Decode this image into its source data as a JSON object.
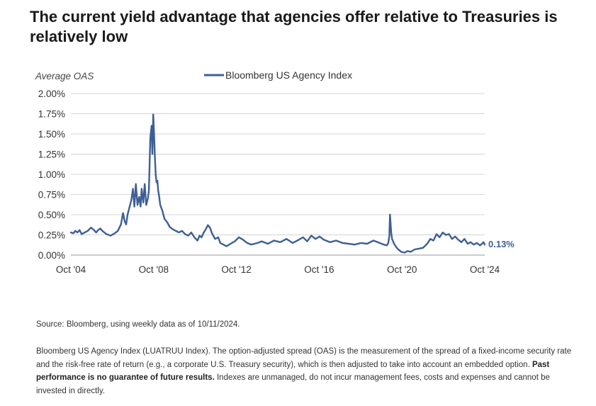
{
  "title": "The current yield advantage that agencies offer relative to Treasuries is relatively low",
  "chart_data": {
    "type": "line",
    "ylabel": "Average OAS",
    "ylim": [
      0,
      2.0
    ],
    "y_ticks": [
      "2.00%",
      "1.75%",
      "1.50%",
      "1.25%",
      "1.00%",
      "0.75%",
      "0.50%",
      "0.25%",
      "0.00%"
    ],
    "y_tick_values": [
      2.0,
      1.75,
      1.5,
      1.25,
      1.0,
      0.75,
      0.5,
      0.25,
      0.0
    ],
    "x_ticks": [
      "Oct '04",
      "Oct '08",
      "Oct '12",
      "Oct '16",
      "Oct '20",
      "Oct '24"
    ],
    "x_tick_values": [
      2004.78,
      2008.78,
      2012.78,
      2016.78,
      2020.78,
      2024.78
    ],
    "grid": true,
    "legend_position": "top",
    "series": [
      {
        "name": "Bloomberg US Agency Index",
        "color": "#3e5f94",
        "end_label": "0.13%",
        "x": [
          2004.78,
          2004.9,
          2005.0,
          2005.1,
          2005.2,
          2005.3,
          2005.45,
          2005.6,
          2005.75,
          2005.9,
          2006.0,
          2006.1,
          2006.2,
          2006.3,
          2006.5,
          2006.7,
          2006.9,
          2007.05,
          2007.2,
          2007.3,
          2007.38,
          2007.45,
          2007.52,
          2007.6,
          2007.7,
          2007.78,
          2007.85,
          2007.92,
          2008.0,
          2008.08,
          2008.15,
          2008.2,
          2008.28,
          2008.35,
          2008.42,
          2008.5,
          2008.55,
          2008.62,
          2008.68,
          2008.72,
          2008.76,
          2008.8,
          2008.84,
          2008.88,
          2008.92,
          2008.96,
          2009.0,
          2009.05,
          2009.1,
          2009.2,
          2009.3,
          2009.45,
          2009.55,
          2009.7,
          2009.85,
          2010.0,
          2010.15,
          2010.3,
          2010.45,
          2010.6,
          2010.75,
          2010.9,
          2011.0,
          2011.1,
          2011.2,
          2011.3,
          2011.4,
          2011.5,
          2011.6,
          2011.75,
          2011.9,
          2012.0,
          2012.15,
          2012.3,
          2012.5,
          2012.7,
          2012.9,
          2013.1,
          2013.3,
          2013.5,
          2013.8,
          2014.0,
          2014.3,
          2014.6,
          2014.9,
          2015.2,
          2015.5,
          2015.8,
          2016.0,
          2016.2,
          2016.4,
          2016.6,
          2016.8,
          2017.0,
          2017.3,
          2017.6,
          2017.9,
          2018.2,
          2018.5,
          2018.8,
          2019.1,
          2019.4,
          2019.7,
          2019.9,
          2020.05,
          2020.12,
          2020.17,
          2020.2,
          2020.23,
          2020.26,
          2020.3,
          2020.4,
          2020.5,
          2020.6,
          2020.75,
          2020.9,
          2021.05,
          2021.2,
          2021.4,
          2021.6,
          2021.8,
          2022.0,
          2022.15,
          2022.3,
          2022.45,
          2022.6,
          2022.75,
          2022.9,
          2023.05,
          2023.2,
          2023.35,
          2023.5,
          2023.65,
          2023.8,
          2023.95,
          2024.1,
          2024.25,
          2024.4,
          2024.55,
          2024.65,
          2024.72,
          2024.78
        ],
        "values": [
          0.28,
          0.27,
          0.3,
          0.28,
          0.31,
          0.26,
          0.28,
          0.3,
          0.34,
          0.31,
          0.28,
          0.31,
          0.33,
          0.3,
          0.26,
          0.24,
          0.27,
          0.3,
          0.38,
          0.52,
          0.42,
          0.38,
          0.5,
          0.58,
          0.68,
          0.82,
          0.6,
          0.88,
          0.62,
          0.72,
          0.6,
          0.82,
          0.65,
          0.88,
          0.62,
          0.7,
          0.8,
          1.45,
          1.6,
          1.25,
          1.74,
          1.5,
          1.2,
          1.0,
          0.9,
          0.92,
          0.8,
          0.72,
          0.62,
          0.55,
          0.45,
          0.4,
          0.35,
          0.32,
          0.3,
          0.28,
          0.3,
          0.26,
          0.24,
          0.28,
          0.22,
          0.18,
          0.24,
          0.22,
          0.28,
          0.32,
          0.37,
          0.34,
          0.27,
          0.2,
          0.22,
          0.15,
          0.13,
          0.11,
          0.14,
          0.17,
          0.22,
          0.19,
          0.15,
          0.13,
          0.15,
          0.17,
          0.14,
          0.18,
          0.16,
          0.2,
          0.15,
          0.19,
          0.22,
          0.17,
          0.24,
          0.2,
          0.23,
          0.19,
          0.16,
          0.18,
          0.15,
          0.14,
          0.13,
          0.15,
          0.14,
          0.18,
          0.15,
          0.13,
          0.12,
          0.15,
          0.24,
          0.5,
          0.4,
          0.28,
          0.2,
          0.14,
          0.1,
          0.07,
          0.04,
          0.03,
          0.05,
          0.04,
          0.07,
          0.08,
          0.09,
          0.14,
          0.2,
          0.18,
          0.26,
          0.22,
          0.28,
          0.25,
          0.26,
          0.2,
          0.23,
          0.19,
          0.16,
          0.2,
          0.14,
          0.16,
          0.13,
          0.15,
          0.12,
          0.14,
          0.16,
          0.13
        ]
      }
    ]
  },
  "source": "Source: Bloomberg, using weekly data as of 10/11/2024.",
  "footnote": {
    "text_before": "Bloomberg US Agency Index (LUATRUU Index). The option-adjusted spread (OAS) is the measurement of the spread of a fixed-income security rate and the risk-free rate of return (e.g., a corporate U.S. Treasury security), which is then adjusted to take into account an embedded option.",
    "bold": "Past performance is no guarantee of future results.",
    "text_after": "Indexes  are unmanaged, do not incur management fees, costs and expenses and cannot be invested in directly."
  }
}
